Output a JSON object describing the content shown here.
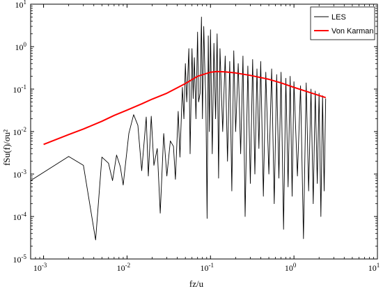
{
  "chart_data": {
    "type": "line",
    "xlabel": "fz/u",
    "ylabel": "fSu(f)/σu²",
    "xscale": "log",
    "yscale": "log",
    "xlim": [
      0.0007,
      10
    ],
    "ylim": [
      1e-05,
      10
    ],
    "grid": false,
    "legend_position": "top-right",
    "x_ticks": [
      {
        "value": 0.001,
        "base": "10",
        "exp": "-3"
      },
      {
        "value": 0.01,
        "base": "10",
        "exp": "-2"
      },
      {
        "value": 0.1,
        "base": "10",
        "exp": "-1"
      },
      {
        "value": 1,
        "base": "10",
        "exp": "0"
      },
      {
        "value": 10,
        "base": "10",
        "exp": "1"
      }
    ],
    "y_ticks": [
      {
        "value": 1e-05,
        "base": "10",
        "exp": "-5"
      },
      {
        "value": 0.0001,
        "base": "10",
        "exp": "-4"
      },
      {
        "value": 0.001,
        "base": "10",
        "exp": "-3"
      },
      {
        "value": 0.01,
        "base": "10",
        "exp": "-2"
      },
      {
        "value": 0.1,
        "base": "10",
        "exp": "-1"
      },
      {
        "value": 1,
        "base": "10",
        "exp": "0"
      },
      {
        "value": 10,
        "base": "10",
        "exp": "1"
      }
    ],
    "series": [
      {
        "name": "LES",
        "color": "#000000",
        "x": [
          0.0007,
          0.002,
          0.003,
          0.0042,
          0.005,
          0.006,
          0.0067,
          0.0075,
          0.0083,
          0.009,
          0.0105,
          0.012,
          0.0135,
          0.015,
          0.017,
          0.018,
          0.0195,
          0.021,
          0.023,
          0.025,
          0.0275,
          0.03,
          0.033,
          0.036,
          0.038,
          0.041,
          0.043,
          0.046,
          0.048,
          0.05,
          0.052,
          0.055,
          0.057,
          0.06,
          0.062,
          0.064,
          0.067,
          0.07,
          0.072,
          0.075,
          0.078,
          0.08,
          0.083,
          0.086,
          0.088,
          0.091,
          0.094,
          0.097,
          0.1,
          0.105,
          0.11,
          0.115,
          0.12,
          0.125,
          0.13,
          0.14,
          0.15,
          0.16,
          0.17,
          0.18,
          0.19,
          0.2,
          0.215,
          0.23,
          0.245,
          0.26,
          0.28,
          0.3,
          0.32,
          0.34,
          0.36,
          0.38,
          0.4,
          0.43,
          0.46,
          0.5,
          0.54,
          0.58,
          0.62,
          0.66,
          0.7,
          0.75,
          0.8,
          0.85,
          0.9,
          0.95,
          1.0,
          1.1,
          1.2,
          1.3,
          1.4,
          1.5,
          1.6,
          1.7,
          1.8,
          1.9,
          2.0,
          2.1,
          2.2,
          2.3,
          2.4
        ],
        "y": [
          0.0007,
          0.0026,
          0.0016,
          2.8e-05,
          0.0025,
          0.0018,
          0.0007,
          0.0028,
          0.0015,
          0.00055,
          0.009,
          0.025,
          0.014,
          0.0012,
          0.022,
          0.0009,
          0.023,
          0.0016,
          0.004,
          0.00012,
          0.009,
          0.0009,
          0.006,
          0.0045,
          0.00075,
          0.03,
          0.0025,
          0.11,
          0.02,
          0.4,
          0.05,
          0.9,
          0.003,
          0.9,
          0.06,
          0.55,
          0.02,
          2.2,
          0.05,
          0.08,
          5.0,
          0.02,
          3.0,
          0.2,
          0.06,
          9e-05,
          1.8,
          0.01,
          2.5,
          0.003,
          1.2,
          0.02,
          2.0,
          0.0008,
          0.9,
          0.01,
          0.6,
          0.002,
          0.45,
          0.0004,
          0.8,
          0.01,
          0.4,
          0.003,
          0.6,
          0.0001,
          0.35,
          0.0006,
          0.5,
          0.001,
          0.3,
          0.004,
          0.45,
          0.0003,
          0.25,
          0.001,
          0.3,
          0.0002,
          0.22,
          0.0008,
          0.25,
          5e-05,
          0.18,
          0.0005,
          0.2,
          0.0003,
          0.15,
          0.0009,
          0.12,
          3e-05,
          0.14,
          0.0004,
          0.1,
          0.0002,
          0.09,
          0.0006,
          0.08,
          0.0001,
          0.07,
          0.0004,
          0.06
        ]
      },
      {
        "name": "Von Karman",
        "color": "#ff0000",
        "x": [
          0.001,
          0.002,
          0.003,
          0.005,
          0.007,
          0.01,
          0.015,
          0.02,
          0.03,
          0.05,
          0.07,
          0.1,
          0.12,
          0.15,
          0.2,
          0.3,
          0.5,
          0.7,
          1.0,
          1.5,
          2.4
        ],
        "y": [
          0.005,
          0.0085,
          0.0115,
          0.0175,
          0.024,
          0.032,
          0.045,
          0.058,
          0.08,
          0.135,
          0.2,
          0.25,
          0.26,
          0.255,
          0.24,
          0.21,
          0.17,
          0.14,
          0.11,
          0.085,
          0.063
        ]
      }
    ]
  }
}
